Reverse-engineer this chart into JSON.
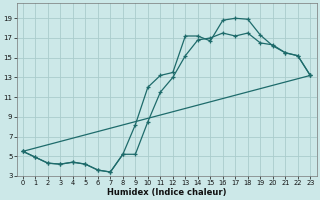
{
  "xlabel": "Humidex (Indice chaleur)",
  "bg_color": "#cce8e8",
  "grid_color": "#aacccc",
  "line_color": "#1e6b6b",
  "xlim": [
    -0.5,
    23.5
  ],
  "ylim": [
    3,
    20
  ],
  "xticks": [
    0,
    1,
    2,
    3,
    4,
    5,
    6,
    7,
    8,
    9,
    10,
    11,
    12,
    13,
    14,
    15,
    16,
    17,
    18,
    19,
    20,
    21,
    22,
    23
  ],
  "yticks": [
    3,
    5,
    7,
    9,
    11,
    13,
    15,
    17,
    19
  ],
  "series1_x": [
    0,
    1,
    2,
    3,
    4,
    5,
    6,
    7,
    8,
    9,
    10,
    11,
    12,
    13,
    14,
    15,
    16,
    17,
    18,
    19,
    20,
    21,
    22,
    23
  ],
  "series1_y": [
    5.5,
    4.9,
    4.3,
    4.2,
    4.4,
    4.2,
    3.6,
    3.4,
    5.2,
    8.2,
    12.0,
    13.2,
    13.5,
    17.2,
    17.2,
    16.7,
    18.8,
    19.0,
    18.9,
    17.3,
    16.2,
    15.5,
    15.2,
    13.2
  ],
  "series2_x": [
    0,
    1,
    2,
    3,
    4,
    5,
    6,
    7,
    8,
    9,
    10,
    11,
    12,
    13,
    14,
    15,
    16,
    17,
    18,
    19,
    20,
    21,
    22,
    23
  ],
  "series2_y": [
    5.5,
    4.9,
    4.3,
    4.2,
    4.4,
    4.2,
    3.6,
    3.4,
    5.2,
    5.2,
    8.5,
    11.5,
    13.0,
    15.2,
    16.8,
    17.0,
    17.5,
    17.2,
    17.5,
    16.5,
    16.3,
    15.5,
    15.2,
    13.2
  ],
  "series3_x": [
    0,
    23
  ],
  "series3_y": [
    5.5,
    13.2
  ]
}
